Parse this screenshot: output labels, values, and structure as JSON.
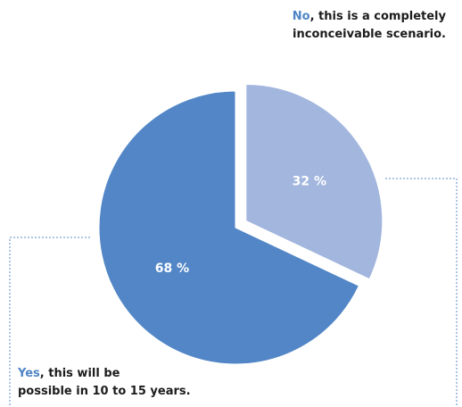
{
  "chart_data": {
    "type": "pie",
    "slices": [
      {
        "label": "No, this is a completely inconceivable scenario.",
        "value": 32,
        "display": "32 %",
        "color": "#a2b6de",
        "exploded": true
      },
      {
        "label": "Yes, this will be possible in 10 to 15 years.",
        "value": 68,
        "display": "68 %",
        "color": "#5286c6",
        "exploded": false
      }
    ],
    "legend": "callouts"
  },
  "callouts": {
    "no": {
      "keyword": "No",
      "line1_rest": ", this is a completely",
      "line2": "inconceivable scenario."
    },
    "yes": {
      "keyword": "Yes",
      "line1_rest": ", this will be",
      "line2": "possible in 10 to 15 years."
    }
  },
  "colors": {
    "accent": "#4f85c5",
    "leader_line": "#5b8bc9"
  }
}
